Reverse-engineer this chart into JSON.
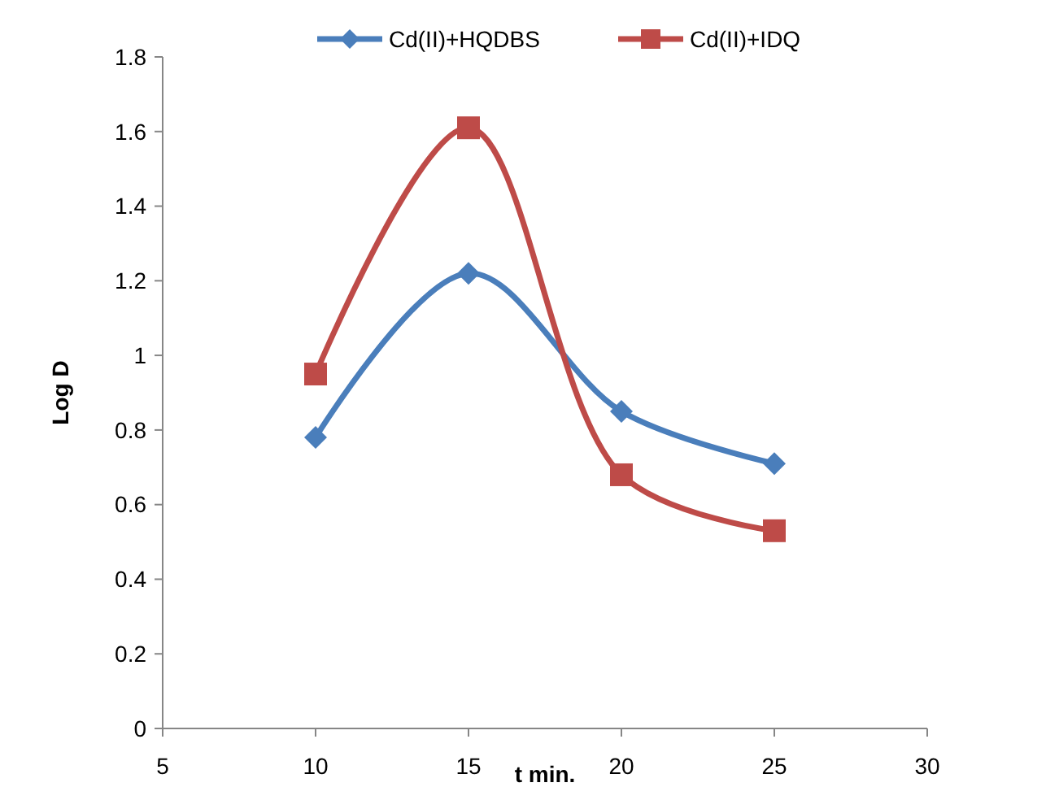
{
  "chart_data": {
    "type": "line",
    "xlabel": "t min.",
    "ylabel": "Log D",
    "x": [
      10,
      15,
      20,
      25
    ],
    "series": [
      {
        "name": "Cd(II)+HQDBS",
        "color": "#4a7ebb",
        "marker": "diamond",
        "values": [
          0.78,
          1.22,
          0.85,
          0.71
        ]
      },
      {
        "name": "Cd(II)+IDQ",
        "color": "#be4b48",
        "marker": "square",
        "values": [
          0.95,
          1.61,
          0.68,
          0.53
        ]
      }
    ],
    "xlim": [
      5,
      30
    ],
    "xticks": [
      5,
      10,
      15,
      20,
      25,
      30
    ],
    "ylim": [
      0,
      1.8
    ],
    "yticks": [
      0,
      0.2,
      0.4,
      0.6,
      0.8,
      1,
      1.2,
      1.4,
      1.6,
      1.8
    ],
    "grid": false,
    "legend": "top",
    "line_style": "solid"
  }
}
